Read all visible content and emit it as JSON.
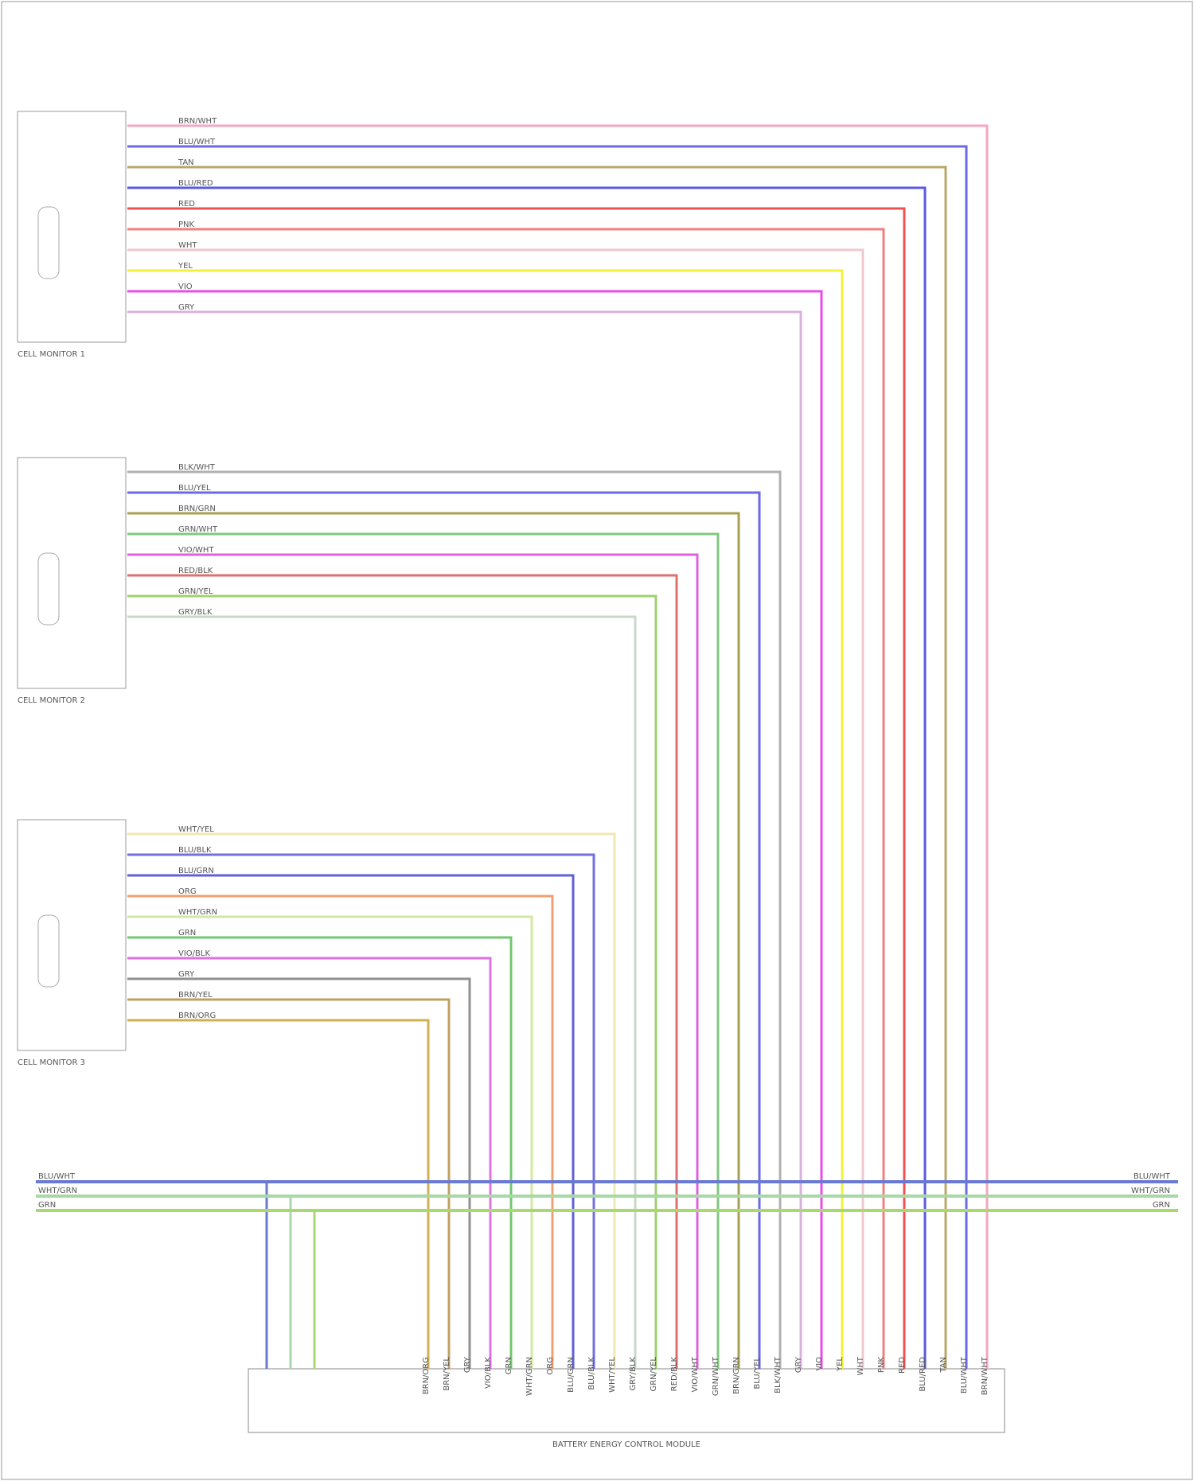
{
  "modules": [
    {
      "label": "CELL MONITOR 1",
      "wires": [
        {
          "name": "BRN/WHT",
          "color": "#f4a6c0"
        },
        {
          "name": "BLU/WHT",
          "color": "#6a6ae8"
        },
        {
          "name": "TAN",
          "color": "#b8a868"
        },
        {
          "name": "BLU/RED",
          "color": "#5a5ae0"
        },
        {
          "name": "RED",
          "color": "#f05050"
        },
        {
          "name": "PNK",
          "color": "#f08080"
        },
        {
          "name": "WHT",
          "color": "#f0c8d0"
        },
        {
          "name": "YEL",
          "color": "#f2f23a"
        },
        {
          "name": "VIO",
          "color": "#e84ce8"
        },
        {
          "name": "GRY",
          "color": "#d8b0e0"
        }
      ]
    },
    {
      "label": "CELL MONITOR 2",
      "wires": [
        {
          "name": "BLK/WHT",
          "color": "#b0b0b0"
        },
        {
          "name": "BLU/YEL",
          "color": "#6a6ae8"
        },
        {
          "name": "BRN/GRN",
          "color": "#a8a050"
        },
        {
          "name": "GRN/WHT",
          "color": "#80c880"
        },
        {
          "name": "VIO/WHT",
          "color": "#e060e0"
        },
        {
          "name": "RED/BLK",
          "color": "#e07070"
        },
        {
          "name": "GRN/YEL",
          "color": "#a0d070"
        },
        {
          "name": "GRY/BLK",
          "color": "#c8d8c8"
        }
      ]
    },
    {
      "label": "CELL MONITOR 3",
      "wires": [
        {
          "name": "WHT/YEL",
          "color": "#f0e8b0"
        },
        {
          "name": "BLU/BLK",
          "color": "#7070e0"
        },
        {
          "name": "BLU/GRN",
          "color": "#6060d8"
        },
        {
          "name": "ORG",
          "color": "#f0a070"
        },
        {
          "name": "WHT/GRN",
          "color": "#d0e8a0"
        },
        {
          "name": "GRN",
          "color": "#70c870"
        },
        {
          "name": "VIO/BLK",
          "color": "#e070e8"
        },
        {
          "name": "GRY",
          "color": "#909090"
        },
        {
          "name": "BRN/YEL",
          "color": "#c0a060"
        },
        {
          "name": "BRN/ORG",
          "color": "#d0b050"
        }
      ]
    }
  ],
  "bus": [
    {
      "name": "BLU/WHT",
      "color": "#6a7ad0"
    },
    {
      "name": "WHT/GRN",
      "color": "#a8d8a8"
    },
    {
      "name": "GRN",
      "color": "#a8d870"
    }
  ],
  "controller": "BATTERY ENERGY CONTROL MODULE"
}
